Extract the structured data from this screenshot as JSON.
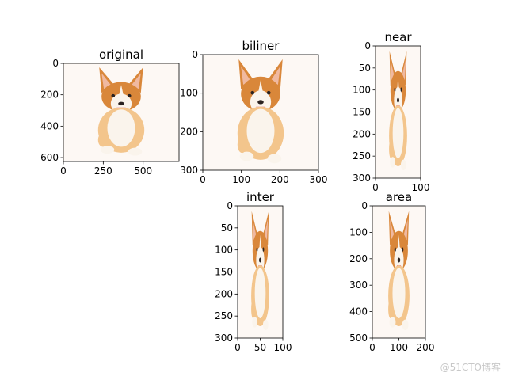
{
  "figure": {
    "watermark": "@51CTO博客"
  },
  "colors": {
    "background": "#fdf8f4",
    "fur_orange": "#d9873a",
    "fur_light": "#f3c58c",
    "fur_white": "#faf4ec",
    "ear_inner": "#f0b9a0",
    "nose": "#2a2220",
    "tongue": "#e0657a",
    "axis": "#000000"
  },
  "chart_data": [
    {
      "type": "image",
      "title": "original",
      "xlim": [
        0,
        725
      ],
      "ylim": [
        625,
        0
      ],
      "xticks": [
        0,
        250,
        500
      ],
      "yticks": [
        0,
        200,
        400,
        600
      ],
      "content": "dog-photo"
    },
    {
      "type": "image",
      "title": "biliner",
      "xlim": [
        0,
        300
      ],
      "ylim": [
        300,
        0
      ],
      "xticks": [
        0,
        100,
        200,
        300
      ],
      "yticks": [
        0,
        100,
        200,
        300
      ],
      "content": "dog-photo"
    },
    {
      "type": "image",
      "title": "near",
      "xlim": [
        0,
        100
      ],
      "ylim": [
        300,
        0
      ],
      "xticks": [
        0,
        50,
        100
      ],
      "yticks": [
        0,
        50,
        100,
        150,
        200,
        250,
        300
      ],
      "xtick_labels": [
        "0",
        "",
        "100"
      ],
      "content": "dog-photo"
    },
    {
      "type": "image",
      "title": "inter",
      "xlim": [
        0,
        100
      ],
      "ylim": [
        300,
        0
      ],
      "xticks": [
        0,
        50,
        100
      ],
      "yticks": [
        0,
        50,
        100,
        150,
        200,
        250,
        300
      ],
      "content": "dog-photo"
    },
    {
      "type": "image",
      "title": "area",
      "xlim": [
        0,
        200
      ],
      "ylim": [
        500,
        0
      ],
      "xticks": [
        0,
        100,
        200
      ],
      "yticks": [
        0,
        100,
        200,
        300,
        400,
        500
      ],
      "content": "dog-photo"
    }
  ]
}
